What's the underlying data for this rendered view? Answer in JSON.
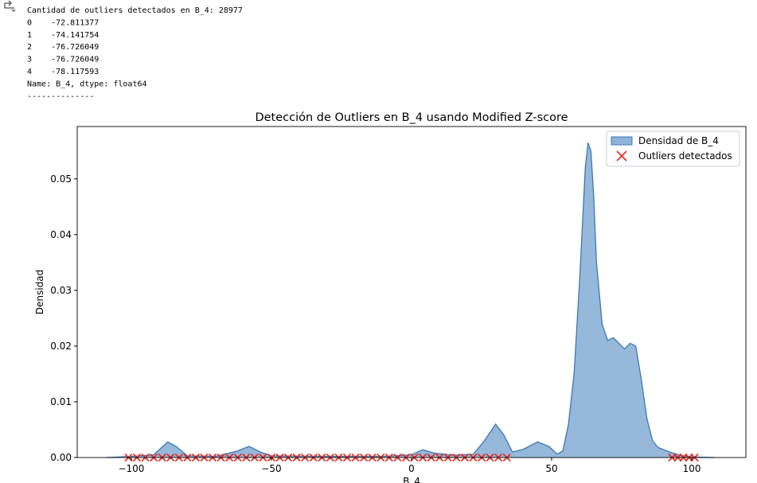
{
  "console_output": {
    "lines": [
      "Cantidad de outliers detectados en B_4: 28977",
      "0    -72.811377",
      "1    -74.141754",
      "2    -76.726049",
      "3    -76.726049",
      "4    -78.117593",
      "Name: B_4, dtype: float64",
      "--------------"
    ]
  },
  "chart_data": {
    "type": "area",
    "title": "Detección de Outliers en B_4 usando Modified Z-score",
    "x_label": "B_4",
    "y_label": "Densidad",
    "xlim": [
      -119.3,
      119.3
    ],
    "ylim": [
      0,
      0.0594
    ],
    "xticks": [
      {
        "value": -100,
        "label": "−100"
      },
      {
        "value": -50,
        "label": "−50"
      },
      0,
      50,
      100
    ],
    "yticks": [
      {
        "value": 0,
        "label": "0.00"
      },
      {
        "value": 0.01,
        "label": "0.01"
      },
      {
        "value": 0.02,
        "label": "0.02"
      },
      {
        "value": 0.03,
        "label": "0.03"
      },
      {
        "value": 0.04,
        "label": "0.04"
      },
      {
        "value": 0.05,
        "label": "0.05"
      }
    ],
    "legend": "upper right",
    "series": [
      {
        "name": "Densidad de B_4",
        "type": "area",
        "color": "#8fb4d9",
        "edge_color": "#3d78b0",
        "x": [
          -109,
          -100,
          -92,
          -87,
          -84,
          -80,
          -70,
          -62,
          -58,
          -54,
          -50,
          -30,
          -10,
          0,
          4,
          8,
          15,
          22,
          26,
          30,
          33,
          36,
          40,
          45,
          49,
          52,
          54,
          56,
          58,
          60,
          62,
          63,
          64,
          65,
          66,
          68,
          70,
          72,
          74,
          76,
          78,
          80,
          82,
          84,
          86,
          88,
          92,
          96,
          100,
          108
        ],
        "values": [
          0,
          0.0002,
          0.0005,
          0.0028,
          0.002,
          0.0003,
          0.0002,
          0.0012,
          0.002,
          0.001,
          0.0003,
          0.0002,
          0.0002,
          0.0005,
          0.0014,
          0.0008,
          0.0004,
          0.0006,
          0.003,
          0.006,
          0.004,
          0.001,
          0.0015,
          0.0028,
          0.002,
          0.0006,
          0.0012,
          0.006,
          0.015,
          0.032,
          0.052,
          0.0565,
          0.055,
          0.047,
          0.035,
          0.024,
          0.021,
          0.0215,
          0.0205,
          0.0195,
          0.0205,
          0.02,
          0.014,
          0.007,
          0.003,
          0.0018,
          0.001,
          0.0004,
          0.0001,
          0
        ]
      },
      {
        "name": "Outliers detectados",
        "type": "scatter",
        "color": "#e8281e",
        "x": [
          -101,
          -98,
          -95,
          -92,
          -89,
          -86,
          -83,
          -80,
          -77,
          -74,
          -71,
          -68,
          -65,
          -62,
          -59,
          -56,
          -53,
          -50,
          -47,
          -44,
          -41,
          -38,
          -35,
          -32,
          -29,
          -26,
          -23,
          -20,
          -17,
          -14,
          -11,
          -8,
          -5,
          -2,
          1,
          4,
          7,
          10,
          13,
          16,
          19,
          22,
          25,
          28,
          31,
          34,
          93,
          95,
          97,
          99,
          101
        ],
        "values": [
          0,
          0,
          0,
          0,
          0,
          0,
          0,
          0,
          0,
          0,
          0,
          0,
          0,
          0,
          0,
          0,
          0,
          0,
          0,
          0,
          0,
          0,
          0,
          0,
          0,
          0,
          0,
          0,
          0,
          0,
          0,
          0,
          0,
          0,
          0,
          0,
          0,
          0,
          0,
          0,
          0,
          0,
          0,
          0,
          0,
          0,
          0,
          0,
          0,
          0,
          0
        ]
      }
    ]
  }
}
